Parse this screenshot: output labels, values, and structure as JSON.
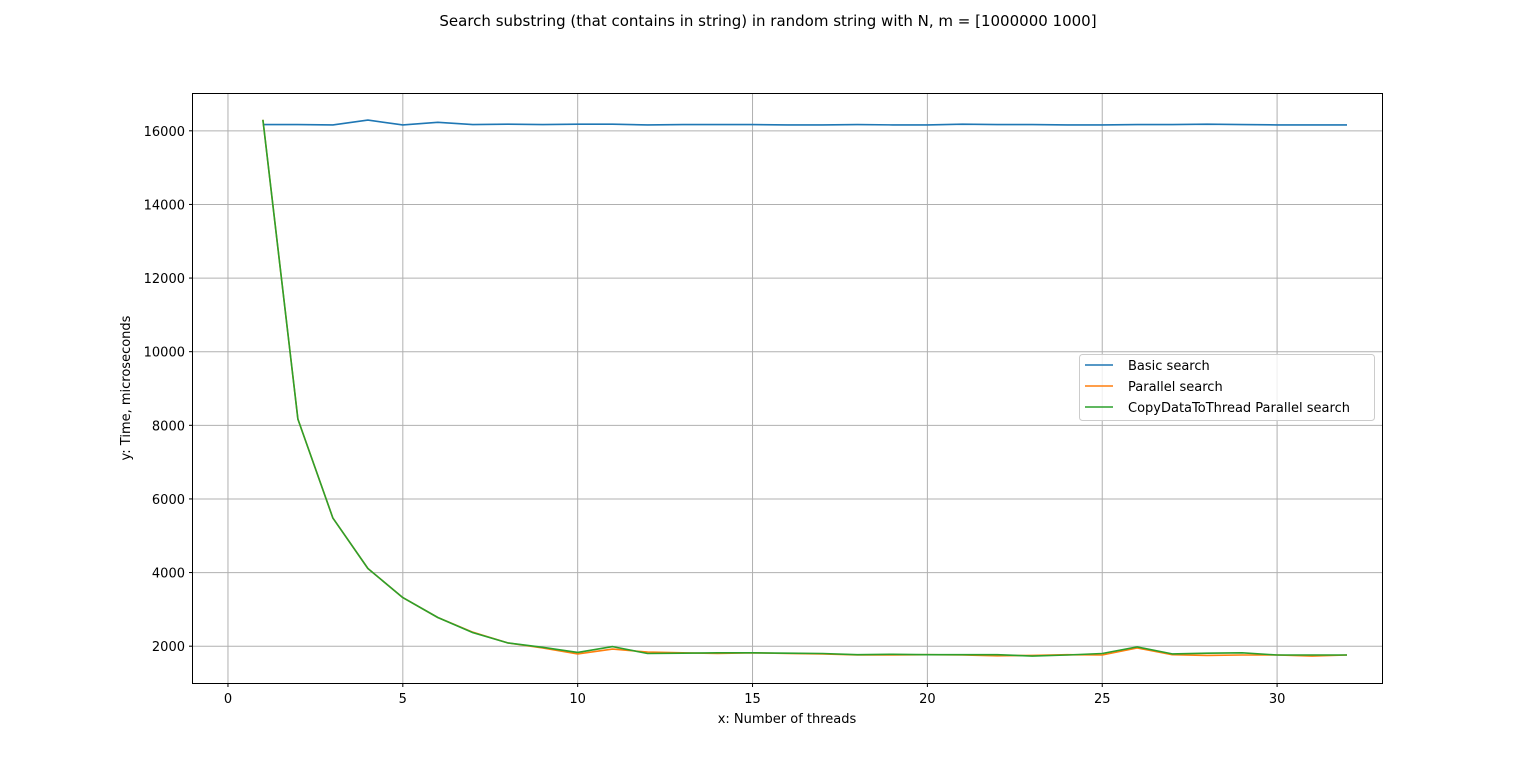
{
  "chart_data": {
    "type": "line",
    "title": "Search substring (that contains in string) in random string with N, m = [1000000    1000]",
    "xlabel": "x: Number of threads",
    "ylabel": "y: Time, microseconds",
    "xlim": [
      -1,
      33
    ],
    "ylim": [
      1000,
      17000
    ],
    "xticks": [
      0,
      5,
      10,
      15,
      20,
      25,
      30
    ],
    "yticks": [
      2000,
      4000,
      6000,
      8000,
      10000,
      12000,
      14000,
      16000
    ],
    "grid": true,
    "legend_position": "center-right",
    "x": [
      1,
      2,
      3,
      4,
      5,
      6,
      7,
      8,
      9,
      10,
      11,
      12,
      13,
      14,
      15,
      16,
      17,
      18,
      19,
      20,
      21,
      22,
      23,
      24,
      25,
      26,
      27,
      28,
      29,
      30,
      31,
      32
    ],
    "series": [
      {
        "name": "Basic search",
        "color": "#1f77b4",
        "values": [
          16170,
          16170,
          16160,
          16290,
          16160,
          16230,
          16170,
          16180,
          16170,
          16180,
          16180,
          16160,
          16170,
          16170,
          16170,
          16160,
          16160,
          16170,
          16160,
          16160,
          16180,
          16170,
          16170,
          16160,
          16160,
          16170,
          16170,
          16180,
          16170,
          16160,
          16160,
          16160
        ]
      },
      {
        "name": "Parallel search",
        "color": "#ff7f0e",
        "values": [
          16300,
          8170,
          5480,
          4110,
          3320,
          2780,
          2380,
          2090,
          1950,
          1790,
          1920,
          1840,
          1820,
          1800,
          1820,
          1800,
          1790,
          1760,
          1760,
          1770,
          1760,
          1740,
          1750,
          1770,
          1760,
          1950,
          1770,
          1750,
          1760,
          1760,
          1730,
          1760
        ]
      },
      {
        "name": "CopyDataToThread Parallel search",
        "color": "#2ca02c",
        "values": [
          16300,
          8170,
          5480,
          4110,
          3320,
          2780,
          2370,
          2090,
          1970,
          1830,
          1990,
          1800,
          1810,
          1820,
          1820,
          1810,
          1800,
          1770,
          1780,
          1770,
          1770,
          1770,
          1730,
          1760,
          1800,
          1980,
          1790,
          1810,
          1820,
          1760,
          1760,
          1760
        ]
      }
    ]
  }
}
